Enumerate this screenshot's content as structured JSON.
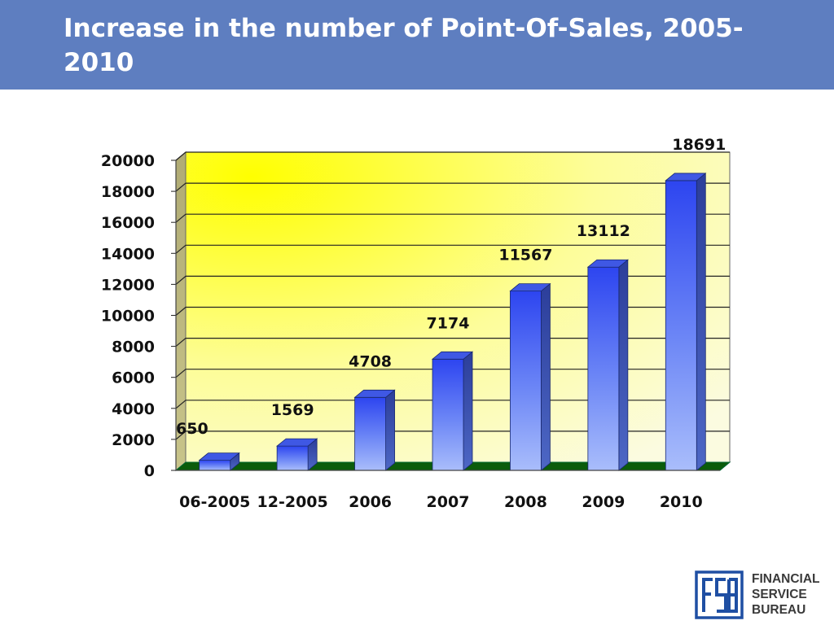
{
  "slide": {
    "title": "Increase in the number of Point-Of-Sales, 2005-2010"
  },
  "chart_data": {
    "type": "bar",
    "title": "",
    "xlabel": "",
    "ylabel": "",
    "categories": [
      "06-2005",
      "12-2005",
      "2006",
      "2007",
      "2008",
      "2009",
      "2010"
    ],
    "values": [
      650,
      1569,
      4708,
      7174,
      11567,
      13112,
      18691
    ],
    "ylim": [
      0,
      20000
    ],
    "yticks": [
      "0",
      "2000",
      "4000",
      "6000",
      "8000",
      "10000",
      "12000",
      "14000",
      "16000",
      "18000",
      "20000"
    ],
    "grid": true,
    "legend": "none",
    "style": "3d",
    "colors": {
      "bar": "#3355ee",
      "wall": "#ffff00",
      "floor": "#0a5a0a"
    }
  },
  "logo": {
    "mark_text": "FSB",
    "text": "FINANCIAL\nSERVICE\nBUREAU"
  }
}
